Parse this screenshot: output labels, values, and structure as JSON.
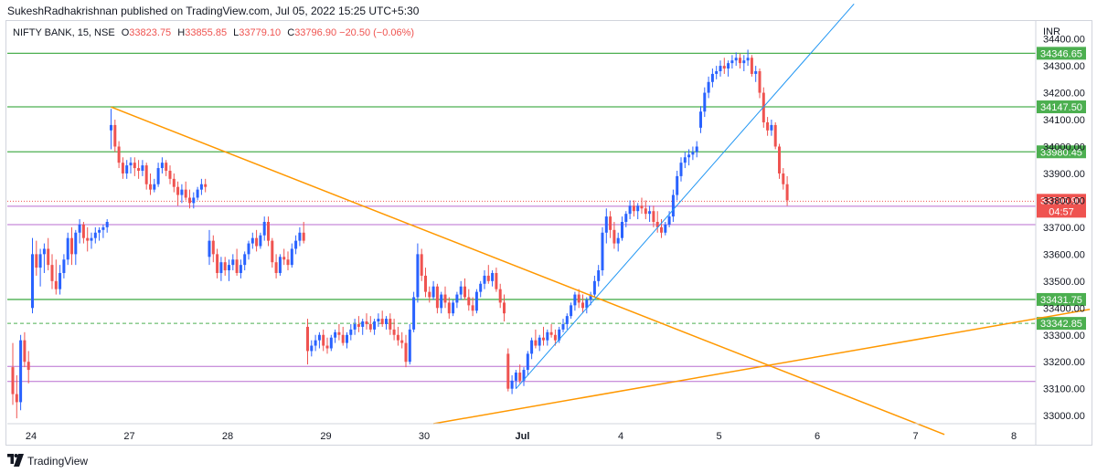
{
  "header": {
    "published": "SukeshRadhakrishnan published on TradingView.com, Jul 05, 2022 15:25 UTC+5:30"
  },
  "legend": {
    "symbol": "NIFTY BANK, 15, NSE",
    "open_label": "O",
    "open": "33823.75",
    "high_label": "H",
    "high": "33855.85",
    "low_label": "L",
    "low": "33779.10",
    "close_label": "C",
    "close": "33796.90",
    "change": "−20.50 (−0.06%)"
  },
  "currency": "INR",
  "footer": {
    "brand": "TradingView"
  },
  "colors": {
    "up": "#2962ff",
    "down": "#ef5350",
    "support": "#4caf50",
    "zone": "#b86ed0",
    "trend": "#ff9800",
    "trend_up": "#2196f3",
    "dashed": "#66bb6a",
    "current": "#ef5350",
    "axis_text": "#131722"
  },
  "chart_data": {
    "type": "candlestick",
    "ylim": [
      32970,
      34470
    ],
    "y_ticks": [
      "33000.00",
      "33100.00",
      "33200.00",
      "33300.00",
      "33400.00",
      "33500.00",
      "33600.00",
      "33700.00",
      "33800.00",
      "33900.00",
      "34000.00",
      "34100.00",
      "34200.00",
      "34300.00",
      "34400.00"
    ],
    "x_ticks": [
      {
        "label": "24",
        "index": 0
      },
      {
        "label": "27",
        "index": 25
      },
      {
        "label": "28",
        "index": 50
      },
      {
        "label": "29",
        "index": 75
      },
      {
        "label": "30",
        "index": 100
      },
      {
        "label": "Jul",
        "index": 125
      },
      {
        "label": "4",
        "index": 150
      },
      {
        "label": "5",
        "index": 175
      },
      {
        "label": "6",
        "index": 200
      },
      {
        "label": "7",
        "index": 225
      },
      {
        "label": "8",
        "index": 250
      }
    ],
    "candles": [
      [
        33180,
        33270,
        33040,
        33080
      ],
      [
        33080,
        33150,
        32990,
        33050
      ],
      [
        33050,
        33300,
        33020,
        33280
      ],
      [
        33280,
        33310,
        33180,
        33200
      ],
      [
        33200,
        33240,
        33120,
        33170
      ],
      [
        33400,
        33660,
        33380,
        33600
      ],
      [
        33600,
        33650,
        33520,
        33550
      ],
      [
        33550,
        33620,
        33480,
        33600
      ],
      [
        33600,
        33640,
        33530,
        33620
      ],
      [
        33620,
        33660,
        33540,
        33560
      ],
      [
        33560,
        33600,
        33470,
        33500
      ],
      [
        33500,
        33580,
        33450,
        33470
      ],
      [
        33470,
        33560,
        33450,
        33530
      ],
      [
        33530,
        33600,
        33510,
        33580
      ],
      [
        33580,
        33680,
        33560,
        33660
      ],
      [
        33660,
        33700,
        33560,
        33600
      ],
      [
        33600,
        33690,
        33560,
        33680
      ],
      [
        33680,
        33730,
        33640,
        33710
      ],
      [
        33710,
        33720,
        33640,
        33660
      ],
      [
        33660,
        33700,
        33610,
        33650
      ],
      [
        33650,
        33680,
        33620,
        33660
      ],
      [
        33660,
        33700,
        33640,
        33680
      ],
      [
        33680,
        33700,
        33650,
        33690
      ],
      [
        33690,
        33710,
        33660,
        33700
      ],
      [
        33700,
        33730,
        33680,
        33720
      ],
      [
        34060,
        34140,
        33990,
        34080
      ],
      [
        34080,
        34100,
        33980,
        34000
      ],
      [
        34000,
        34020,
        33920,
        33940
      ],
      [
        33940,
        33960,
        33880,
        33900
      ],
      [
        33900,
        33950,
        33880,
        33930
      ],
      [
        33930,
        33960,
        33900,
        33940
      ],
      [
        33940,
        33960,
        33890,
        33920
      ],
      [
        33920,
        33950,
        33880,
        33910
      ],
      [
        33910,
        33950,
        33890,
        33930
      ],
      [
        33930,
        33940,
        33840,
        33860
      ],
      [
        33860,
        33900,
        33820,
        33840
      ],
      [
        33840,
        33880,
        33830,
        33860
      ],
      [
        33860,
        33940,
        33850,
        33920
      ],
      [
        33920,
        33960,
        33900,
        33940
      ],
      [
        33940,
        33950,
        33890,
        33910
      ],
      [
        33910,
        33930,
        33860,
        33880
      ],
      [
        33880,
        33900,
        33830,
        33850
      ],
      [
        33850,
        33870,
        33780,
        33820
      ],
      [
        33820,
        33860,
        33790,
        33840
      ],
      [
        33840,
        33870,
        33800,
        33810
      ],
      [
        33810,
        33840,
        33770,
        33790
      ],
      [
        33790,
        33830,
        33770,
        33810
      ],
      [
        33810,
        33850,
        33800,
        33840
      ],
      [
        33840,
        33880,
        33820,
        33860
      ],
      [
        33860,
        33880,
        33830,
        33850
      ],
      [
        33590,
        33690,
        33560,
        33650
      ],
      [
        33650,
        33670,
        33570,
        33600
      ],
      [
        33600,
        33620,
        33510,
        33530
      ],
      [
        33530,
        33590,
        33500,
        33570
      ],
      [
        33570,
        33590,
        33520,
        33540
      ],
      [
        33540,
        33580,
        33500,
        33560
      ],
      [
        33560,
        33600,
        33540,
        33580
      ],
      [
        33580,
        33620,
        33520,
        33530
      ],
      [
        33530,
        33580,
        33510,
        33560
      ],
      [
        33560,
        33610,
        33540,
        33600
      ],
      [
        33600,
        33650,
        33580,
        33640
      ],
      [
        33640,
        33680,
        33620,
        33660
      ],
      [
        33660,
        33690,
        33610,
        33630
      ],
      [
        33630,
        33680,
        33620,
        33670
      ],
      [
        33670,
        33740,
        33650,
        33720
      ],
      [
        33720,
        33740,
        33630,
        33650
      ],
      [
        33650,
        33660,
        33550,
        33570
      ],
      [
        33570,
        33600,
        33510,
        33530
      ],
      [
        33530,
        33600,
        33520,
        33590
      ],
      [
        33590,
        33620,
        33560,
        33580
      ],
      [
        33580,
        33610,
        33540,
        33560
      ],
      [
        33560,
        33640,
        33550,
        33620
      ],
      [
        33620,
        33670,
        33600,
        33650
      ],
      [
        33650,
        33700,
        33630,
        33680
      ],
      [
        33680,
        33720,
        33640,
        33650
      ],
      [
        33330,
        33360,
        33190,
        33240
      ],
      [
        33240,
        33280,
        33220,
        33260
      ],
      [
        33260,
        33300,
        33240,
        33280
      ],
      [
        33280,
        33310,
        33250,
        33300
      ],
      [
        33300,
        33320,
        33240,
        33260
      ],
      [
        33260,
        33290,
        33230,
        33250
      ],
      [
        33250,
        33300,
        33240,
        33290
      ],
      [
        33290,
        33320,
        33270,
        33310
      ],
      [
        33310,
        33340,
        33280,
        33300
      ],
      [
        33300,
        33330,
        33260,
        33270
      ],
      [
        33270,
        33310,
        33250,
        33300
      ],
      [
        33300,
        33340,
        33280,
        33320
      ],
      [
        33320,
        33360,
        33300,
        33340
      ],
      [
        33340,
        33370,
        33310,
        33330
      ],
      [
        33330,
        33360,
        33300,
        33350
      ],
      [
        33350,
        33380,
        33320,
        33340
      ],
      [
        33340,
        33370,
        33310,
        33320
      ],
      [
        33320,
        33360,
        33300,
        33350
      ],
      [
        33350,
        33380,
        33330,
        33360
      ],
      [
        33360,
        33390,
        33330,
        33340
      ],
      [
        33340,
        33370,
        33320,
        33360
      ],
      [
        33360,
        33380,
        33300,
        33320
      ],
      [
        33320,
        33360,
        33280,
        33300
      ],
      [
        33300,
        33330,
        33260,
        33280
      ],
      [
        33280,
        33310,
        33250,
        33270
      ],
      [
        33270,
        33300,
        33180,
        33200
      ],
      [
        33200,
        33340,
        33190,
        33320
      ],
      [
        33320,
        33460,
        33310,
        33440
      ],
      [
        33440,
        33640,
        33420,
        33600
      ],
      [
        33600,
        33620,
        33500,
        33520
      ],
      [
        33520,
        33550,
        33440,
        33460
      ],
      [
        33460,
        33480,
        33420,
        33440
      ],
      [
        33440,
        33500,
        33430,
        33480
      ],
      [
        33480,
        33490,
        33380,
        33400
      ],
      [
        33400,
        33460,
        33380,
        33450
      ],
      [
        33450,
        33480,
        33400,
        33420
      ],
      [
        33420,
        33440,
        33360,
        33380
      ],
      [
        33380,
        33430,
        33370,
        33420
      ],
      [
        33420,
        33460,
        33400,
        33450
      ],
      [
        33450,
        33500,
        33430,
        33480
      ],
      [
        33480,
        33510,
        33430,
        33440
      ],
      [
        33440,
        33470,
        33390,
        33410
      ],
      [
        33410,
        33440,
        33370,
        33390
      ],
      [
        33390,
        33470,
        33380,
        33460
      ],
      [
        33460,
        33500,
        33440,
        33490
      ],
      [
        33490,
        33540,
        33470,
        33520
      ],
      [
        33520,
        33560,
        33490,
        33500
      ],
      [
        33500,
        33540,
        33480,
        33530
      ],
      [
        33530,
        33550,
        33460,
        33470
      ],
      [
        33470,
        33490,
        33400,
        33420
      ],
      [
        33420,
        33450,
        33350,
        33380
      ],
      [
        33230,
        33250,
        33090,
        33100
      ],
      [
        33100,
        33150,
        33080,
        33130
      ],
      [
        33130,
        33170,
        33100,
        33160
      ],
      [
        33160,
        33190,
        33120,
        33130
      ],
      [
        33130,
        33180,
        33110,
        33170
      ],
      [
        33170,
        33240,
        33150,
        33230
      ],
      [
        33230,
        33290,
        33210,
        33280
      ],
      [
        33280,
        33320,
        33250,
        33260
      ],
      [
        33260,
        33300,
        33240,
        33290
      ],
      [
        33290,
        33330,
        33260,
        33280
      ],
      [
        33280,
        33320,
        33260,
        33310
      ],
      [
        33310,
        33340,
        33290,
        33300
      ],
      [
        33300,
        33320,
        33260,
        33280
      ],
      [
        33280,
        33330,
        33270,
        33320
      ],
      [
        33320,
        33360,
        33310,
        33340
      ],
      [
        33340,
        33380,
        33320,
        33370
      ],
      [
        33370,
        33420,
        33360,
        33410
      ],
      [
        33410,
        33460,
        33390,
        33450
      ],
      [
        33450,
        33470,
        33400,
        33420
      ],
      [
        33420,
        33450,
        33380,
        33400
      ],
      [
        33400,
        33440,
        33380,
        33430
      ],
      [
        33430,
        33460,
        33410,
        33450
      ],
      [
        33450,
        33520,
        33440,
        33500
      ],
      [
        33500,
        33560,
        33480,
        33540
      ],
      [
        33540,
        33700,
        33520,
        33680
      ],
      [
        33680,
        33770,
        33640,
        33740
      ],
      [
        33740,
        33760,
        33660,
        33690
      ],
      [
        33690,
        33720,
        33620,
        33640
      ],
      [
        33640,
        33680,
        33610,
        33660
      ],
      [
        33660,
        33740,
        33650,
        33720
      ],
      [
        33720,
        33760,
        33700,
        33750
      ],
      [
        33750,
        33800,
        33730,
        33780
      ],
      [
        33780,
        33800,
        33740,
        33760
      ],
      [
        33760,
        33790,
        33730,
        33780
      ],
      [
        33780,
        33810,
        33750,
        33770
      ],
      [
        33770,
        33800,
        33730,
        33750
      ],
      [
        33750,
        33780,
        33720,
        33760
      ],
      [
        33760,
        33780,
        33700,
        33720
      ],
      [
        33720,
        33760,
        33680,
        33700
      ],
      [
        33700,
        33730,
        33660,
        33680
      ],
      [
        33680,
        33720,
        33670,
        33710
      ],
      [
        33710,
        33760,
        33700,
        33740
      ],
      [
        33740,
        33840,
        33720,
        33820
      ],
      [
        33820,
        33910,
        33800,
        33890
      ],
      [
        33890,
        33960,
        33870,
        33940
      ],
      [
        33940,
        33980,
        33920,
        33960
      ],
      [
        33960,
        33990,
        33930,
        33970
      ],
      [
        33970,
        34000,
        33950,
        33980
      ],
      [
        33980,
        34020,
        33960,
        34000
      ],
      [
        34070,
        34150,
        34050,
        34130
      ],
      [
        34130,
        34220,
        34110,
        34200
      ],
      [
        34200,
        34260,
        34180,
        34240
      ],
      [
        34240,
        34290,
        34220,
        34270
      ],
      [
        34270,
        34300,
        34250,
        34280
      ],
      [
        34280,
        34320,
        34260,
        34300
      ],
      [
        34300,
        34330,
        34270,
        34290
      ],
      [
        34290,
        34320,
        34260,
        34310
      ],
      [
        34310,
        34340,
        34290,
        34320
      ],
      [
        34320,
        34350,
        34300,
        34330
      ],
      [
        34330,
        34345,
        34290,
        34310
      ],
      [
        34310,
        34340,
        34280,
        34320
      ],
      [
        34320,
        34360,
        34300,
        34330
      ],
      [
        34330,
        34340,
        34260,
        34270
      ],
      [
        34270,
        34300,
        34240,
        34280
      ],
      [
        34280,
        34290,
        34180,
        34200
      ],
      [
        34200,
        34220,
        34070,
        34090
      ],
      [
        34090,
        34110,
        34040,
        34060
      ],
      [
        34060,
        34100,
        34040,
        34080
      ],
      [
        34080,
        34090,
        33990,
        34000
      ],
      [
        34000,
        34010,
        33880,
        33900
      ],
      [
        33900,
        33920,
        33840,
        33860
      ],
      [
        33860,
        33890,
        33780,
        33800
      ]
    ],
    "levels": [
      {
        "value": 34346.65,
        "label": "34346.65",
        "color": "#4caf50",
        "kind": "solid"
      },
      {
        "value": 34147.5,
        "label": "34147.50",
        "color": "#4caf50",
        "kind": "solid"
      },
      {
        "value": 33980.45,
        "label": "33980.45",
        "color": "#4caf50",
        "kind": "solid"
      },
      {
        "value": 33431.75,
        "label": "33431.75",
        "color": "#4caf50",
        "kind": "solid"
      },
      {
        "value": 33342.85,
        "label": "33342.85",
        "color": "#4caf50",
        "kind": "dashed"
      }
    ],
    "zones": [
      33778,
      33710,
      33183,
      33127
    ],
    "current": {
      "value": 33796.9,
      "label": "33796.90",
      "countdown": "04:57"
    },
    "trendlines": [
      {
        "from": [
          25,
          34147
        ],
        "to": [
          237,
          32930
        ],
        "color": "#ff9800"
      },
      {
        "from": [
          107,
          32970
        ],
        "to": [
          274,
          33395
        ],
        "color": "#ff9800"
      },
      {
        "from": [
          128,
          33100
        ],
        "to": [
          214,
          34530
        ],
        "color": "#2196f3"
      }
    ]
  }
}
